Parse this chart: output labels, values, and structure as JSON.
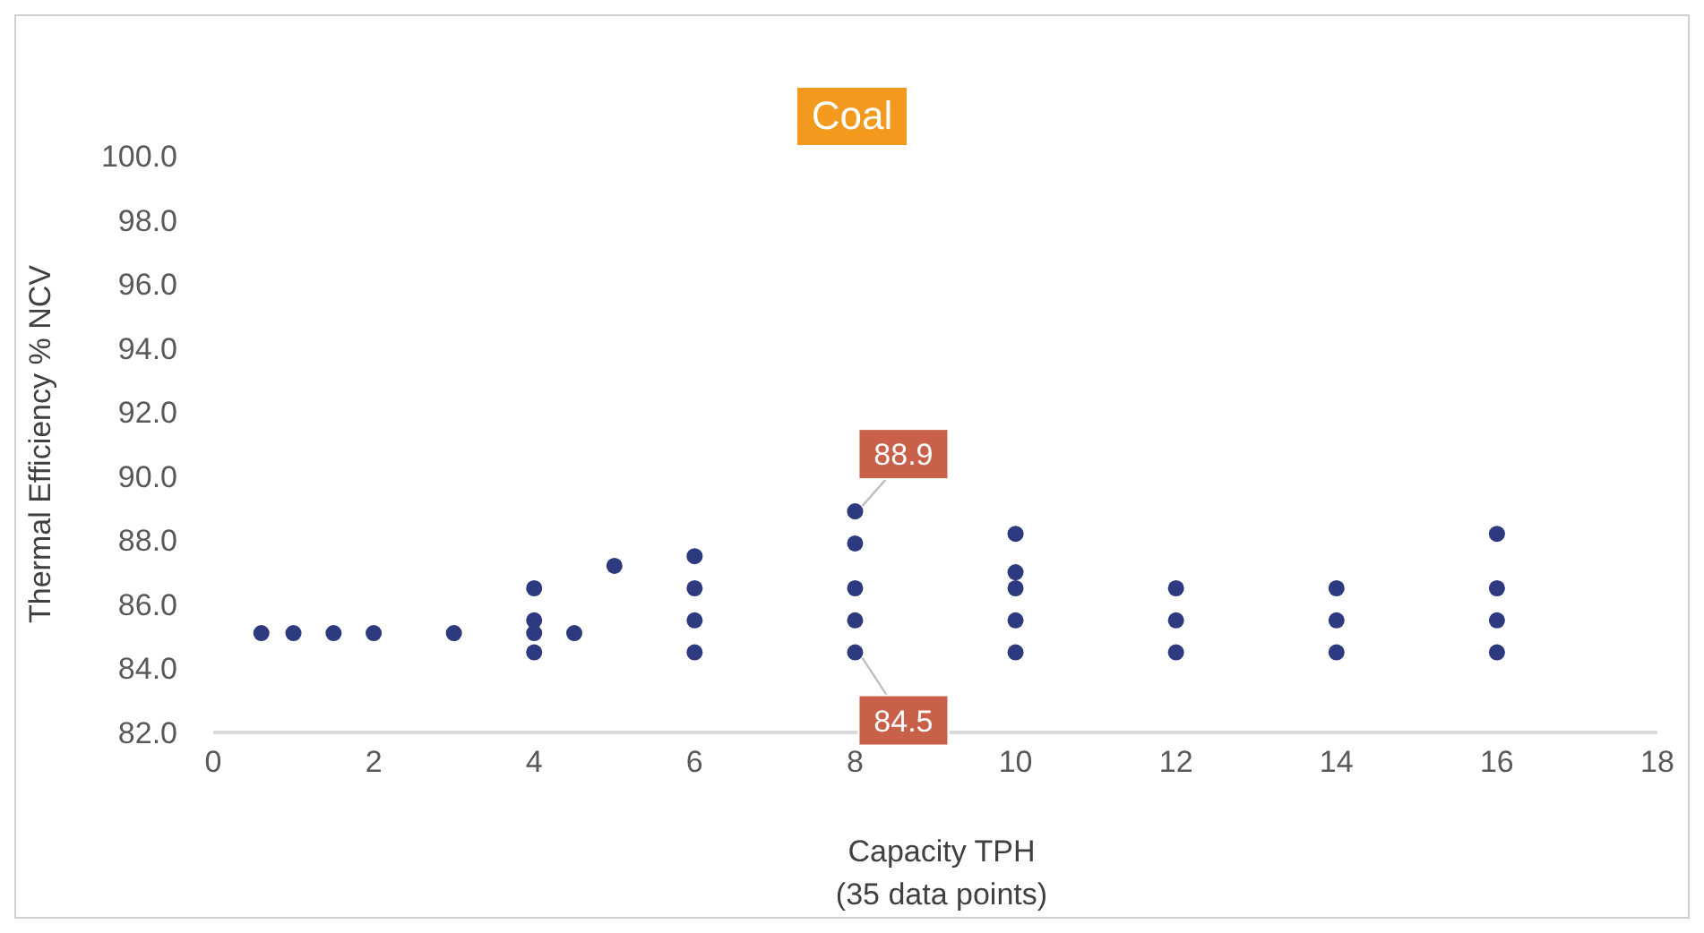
{
  "chart_data": {
    "type": "scatter",
    "title": "Coal",
    "xlabel": "Capacity TPH\n(35 data points)",
    "ylabel": "Thermal Efficiency % NCV",
    "series": [
      {
        "color": "#2e3a80",
        "x": [
          0.6,
          1,
          1.5,
          2,
          3,
          4,
          4,
          4,
          4,
          4.5,
          5,
          6,
          6,
          6,
          6,
          8,
          8,
          8,
          8,
          8,
          10,
          10,
          10,
          10,
          10,
          12,
          12,
          12,
          14,
          14,
          14,
          16,
          16,
          16,
          16
        ],
        "values": [
          85.1,
          85.1,
          85.1,
          85.1,
          85.1,
          86.5,
          85.5,
          85.1,
          84.5,
          85.1,
          87.2,
          87.5,
          86.5,
          85.5,
          84.5,
          88.9,
          87.9,
          86.5,
          85.5,
          84.5,
          88.2,
          87.0,
          86.5,
          85.5,
          84.5,
          86.5,
          85.5,
          84.5,
          86.5,
          85.5,
          84.5,
          88.2,
          86.5,
          85.5,
          84.5
        ]
      }
    ],
    "xlim": [
      0,
      18
    ],
    "xticks": [
      0,
      2,
      4,
      6,
      8,
      10,
      12,
      14,
      16,
      18
    ],
    "ylim": [
      82,
      100
    ],
    "yticks": [
      {
        "value": 82,
        "label": "82.0"
      },
      {
        "value": 84,
        "label": "84.0"
      },
      {
        "value": 86,
        "label": "86.0"
      },
      {
        "value": 88,
        "label": "88.0"
      },
      {
        "value": 90,
        "label": "90.0"
      },
      {
        "value": 92,
        "label": "92.0"
      },
      {
        "value": 94,
        "label": "94.0"
      },
      {
        "value": 96,
        "label": "96.0"
      },
      {
        "value": 98,
        "label": "98.0"
      },
      {
        "value": 100,
        "label": "100.0"
      }
    ],
    "grid": false,
    "legend": false,
    "marker": "circle",
    "annotations": [
      {
        "text": "88.9",
        "x": 8,
        "y": 88.9
      },
      {
        "text": "84.5",
        "x": 8,
        "y": 84.5
      }
    ]
  }
}
